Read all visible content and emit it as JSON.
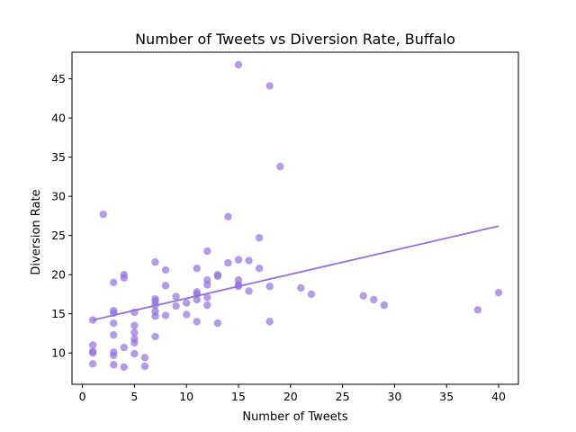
{
  "chart_data": {
    "type": "scatter",
    "title": "Number of Tweets vs Diversion Rate, Buffalo",
    "xlabel": "Number of Tweets",
    "ylabel": "Diversion Rate",
    "xlim": [
      -1,
      41.9
    ],
    "ylim": [
      6.0,
      48.4
    ],
    "xticks": [
      0,
      5,
      10,
      15,
      20,
      25,
      30,
      35,
      40
    ],
    "yticks": [
      10,
      15,
      20,
      25,
      30,
      35,
      40,
      45
    ],
    "grid": false,
    "colors": {
      "points": "#9370db",
      "trend": "#9370db"
    },
    "points": [
      {
        "x": 1,
        "y": 14.2
      },
      {
        "x": 1,
        "y": 11.0
      },
      {
        "x": 1,
        "y": 10.2
      },
      {
        "x": 1,
        "y": 10.0
      },
      {
        "x": 1,
        "y": 8.6
      },
      {
        "x": 2,
        "y": 27.7
      },
      {
        "x": 3,
        "y": 19.0
      },
      {
        "x": 3,
        "y": 15.4
      },
      {
        "x": 3,
        "y": 15.1
      },
      {
        "x": 3,
        "y": 13.8
      },
      {
        "x": 3,
        "y": 12.3
      },
      {
        "x": 3,
        "y": 10.1
      },
      {
        "x": 3,
        "y": 9.7
      },
      {
        "x": 3,
        "y": 8.5
      },
      {
        "x": 4,
        "y": 20.0
      },
      {
        "x": 4,
        "y": 19.6
      },
      {
        "x": 4,
        "y": 10.7
      },
      {
        "x": 4,
        "y": 8.2
      },
      {
        "x": 5,
        "y": 15.2
      },
      {
        "x": 5,
        "y": 13.5
      },
      {
        "x": 5,
        "y": 12.6
      },
      {
        "x": 5,
        "y": 11.8
      },
      {
        "x": 5,
        "y": 11.3
      },
      {
        "x": 5,
        "y": 9.9
      },
      {
        "x": 6,
        "y": 9.4
      },
      {
        "x": 6,
        "y": 8.3
      },
      {
        "x": 7,
        "y": 21.6
      },
      {
        "x": 7,
        "y": 16.9
      },
      {
        "x": 7,
        "y": 16.6
      },
      {
        "x": 7,
        "y": 16.1
      },
      {
        "x": 7,
        "y": 15.3
      },
      {
        "x": 7,
        "y": 14.7
      },
      {
        "x": 7,
        "y": 12.1
      },
      {
        "x": 8,
        "y": 20.6
      },
      {
        "x": 8,
        "y": 18.6
      },
      {
        "x": 8,
        "y": 14.8
      },
      {
        "x": 9,
        "y": 17.2
      },
      {
        "x": 9,
        "y": 16.0
      },
      {
        "x": 10,
        "y": 16.4
      },
      {
        "x": 10,
        "y": 14.9
      },
      {
        "x": 11,
        "y": 20.8
      },
      {
        "x": 11,
        "y": 17.8
      },
      {
        "x": 11,
        "y": 17.5
      },
      {
        "x": 11,
        "y": 16.8
      },
      {
        "x": 11,
        "y": 14.0
      },
      {
        "x": 12,
        "y": 23.0
      },
      {
        "x": 12,
        "y": 19.3
      },
      {
        "x": 12,
        "y": 18.7
      },
      {
        "x": 12,
        "y": 17.1
      },
      {
        "x": 12,
        "y": 16.1
      },
      {
        "x": 13,
        "y": 20.0
      },
      {
        "x": 13,
        "y": 19.8
      },
      {
        "x": 13,
        "y": 13.8
      },
      {
        "x": 14,
        "y": 27.4
      },
      {
        "x": 14,
        "y": 21.5
      },
      {
        "x": 15,
        "y": 46.8
      },
      {
        "x": 15,
        "y": 21.9
      },
      {
        "x": 15,
        "y": 19.3
      },
      {
        "x": 15,
        "y": 18.7
      },
      {
        "x": 15,
        "y": 18.5
      },
      {
        "x": 16,
        "y": 21.8
      },
      {
        "x": 16,
        "y": 17.9
      },
      {
        "x": 17,
        "y": 24.7
      },
      {
        "x": 17,
        "y": 20.8
      },
      {
        "x": 18,
        "y": 44.1
      },
      {
        "x": 18,
        "y": 18.5
      },
      {
        "x": 18,
        "y": 14.0
      },
      {
        "x": 19,
        "y": 33.8
      },
      {
        "x": 21,
        "y": 18.3
      },
      {
        "x": 22,
        "y": 17.5
      },
      {
        "x": 27,
        "y": 17.3
      },
      {
        "x": 28,
        "y": 16.8
      },
      {
        "x": 29,
        "y": 16.1
      },
      {
        "x": 38,
        "y": 15.5
      },
      {
        "x": 40,
        "y": 17.7
      }
    ],
    "trendline": {
      "x": [
        1,
        40
      ],
      "y": [
        14.2,
        26.2
      ]
    }
  }
}
